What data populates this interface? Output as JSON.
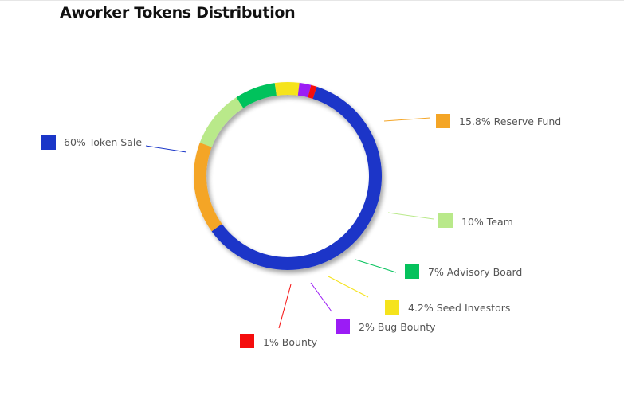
{
  "title": "Aworker Tokens Distribution",
  "chart_data": {
    "type": "pie",
    "style": "donut",
    "title": "Aworker Tokens Distribution",
    "legend_placement": "callouts around chart",
    "slices": [
      {
        "label": "60% Token Sale",
        "value": 60,
        "color": "#1a36c8"
      },
      {
        "label": "15.8% Reserve Fund",
        "value": 15.8,
        "color": "#f4a526"
      },
      {
        "label": "10% Team",
        "value": 10,
        "color": "#b9e98a"
      },
      {
        "label": "7% Advisory Board",
        "value": 7,
        "color": "#05c25c"
      },
      {
        "label": "4.2% Seed Investors",
        "value": 4.2,
        "color": "#f5e31c"
      },
      {
        "label": "2% Bug Bounty",
        "value": 2,
        "color": "#9b1cf5"
      },
      {
        "label": "1% Bounty",
        "value": 1,
        "color": "#f50d0d"
      }
    ]
  }
}
